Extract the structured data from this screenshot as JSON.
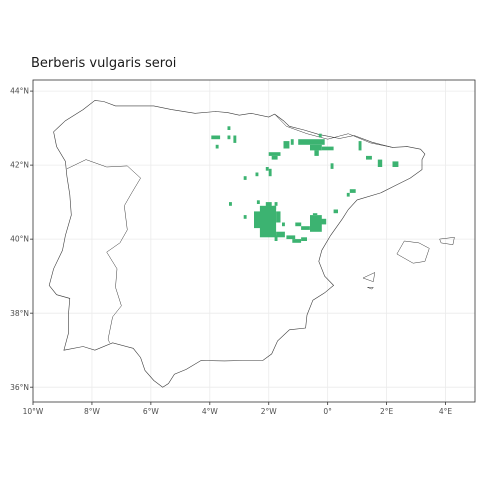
{
  "title": "Berberis vulgaris seroi",
  "colors": {
    "background": "#ffffff",
    "grid": "#ebebeb",
    "panel_border": "#333333",
    "coastline": "#3a3a3a",
    "occurrence": "#3cb371"
  },
  "chart_data": {
    "type": "scatter",
    "title": "Berberis vulgaris seroi",
    "xlabel": "",
    "ylabel": "",
    "xlim": [
      -10.0,
      5.0
    ],
    "ylim": [
      35.6,
      44.3
    ],
    "x_ticks": [
      {
        "value": -10,
        "label": "10°W"
      },
      {
        "value": -8,
        "label": "8°W"
      },
      {
        "value": -6,
        "label": "6°W"
      },
      {
        "value": -4,
        "label": "4°W"
      },
      {
        "value": -2,
        "label": "2°W"
      },
      {
        "value": 0,
        "label": "0°"
      },
      {
        "value": 2,
        "label": "2°E"
      },
      {
        "value": 4,
        "label": "4°E"
      }
    ],
    "y_ticks": [
      {
        "value": 36,
        "label": "36°N"
      },
      {
        "value": 38,
        "label": "38°N"
      },
      {
        "value": 40,
        "label": "40°N"
      },
      {
        "value": 42,
        "label": "42°N"
      },
      {
        "value": 44,
        "label": "44°N"
      }
    ],
    "grid": true,
    "cell_size_deg": 0.1,
    "occurrence_blocks": [
      {
        "lon": [
          -3.95,
          -3.65
        ],
        "lat": [
          42.7,
          42.8
        ]
      },
      {
        "lon": [
          -3.8,
          -3.7
        ],
        "lat": [
          42.45,
          42.55
        ]
      },
      {
        "lon": [
          -3.4,
          -3.3
        ],
        "lat": [
          42.95,
          43.05
        ]
      },
      {
        "lon": [
          -3.4,
          -3.3
        ],
        "lat": [
          42.7,
          42.8
        ]
      },
      {
        "lon": [
          -3.2,
          -3.1
        ],
        "lat": [
          42.6,
          42.8
        ]
      },
      {
        "lon": [
          -2.45,
          -2.35
        ],
        "lat": [
          41.7,
          41.8
        ]
      },
      {
        "lon": [
          -2.85,
          -2.75
        ],
        "lat": [
          41.6,
          41.7
        ]
      },
      {
        "lon": [
          -2.1,
          -2.0
        ],
        "lat": [
          41.85,
          41.95
        ]
      },
      {
        "lon": [
          -2.0,
          -1.9
        ],
        "lat": [
          41.7,
          41.9
        ]
      },
      {
        "lon": [
          -2.0,
          -1.6
        ],
        "lat": [
          42.25,
          42.35
        ]
      },
      {
        "lon": [
          -1.9,
          -1.7
        ],
        "lat": [
          42.15,
          42.25
        ]
      },
      {
        "lon": [
          -1.5,
          -1.3
        ],
        "lat": [
          42.45,
          42.65
        ]
      },
      {
        "lon": [
          -1.25,
          -1.15
        ],
        "lat": [
          42.55,
          42.7
        ]
      },
      {
        "lon": [
          -1.0,
          -0.1
        ],
        "lat": [
          42.55,
          42.7
        ]
      },
      {
        "lon": [
          -0.6,
          -0.2
        ],
        "lat": [
          42.4,
          42.55
        ]
      },
      {
        "lon": [
          -0.45,
          -0.3
        ],
        "lat": [
          42.25,
          42.4
        ]
      },
      {
        "lon": [
          -0.3,
          -0.2
        ],
        "lat": [
          42.75,
          42.85
        ]
      },
      {
        "lon": [
          -0.2,
          0.2
        ],
        "lat": [
          42.4,
          42.5
        ]
      },
      {
        "lon": [
          0.1,
          0.2
        ],
        "lat": [
          41.9,
          42.05
        ]
      },
      {
        "lon": [
          1.05,
          1.15
        ],
        "lat": [
          42.4,
          42.65
        ]
      },
      {
        "lon": [
          1.3,
          1.5
        ],
        "lat": [
          42.15,
          42.25
        ]
      },
      {
        "lon": [
          1.7,
          1.85
        ],
        "lat": [
          41.95,
          42.15
        ]
      },
      {
        "lon": [
          2.2,
          2.4
        ],
        "lat": [
          41.95,
          42.1
        ]
      },
      {
        "lon": [
          0.65,
          0.75
        ],
        "lat": [
          41.15,
          41.25
        ]
      },
      {
        "lon": [
          0.75,
          0.95
        ],
        "lat": [
          41.25,
          41.35
        ]
      },
      {
        "lon": [
          0.2,
          0.35
        ],
        "lat": [
          40.7,
          40.8
        ]
      },
      {
        "lon": [
          -3.35,
          -3.25
        ],
        "lat": [
          40.9,
          41.0
        ]
      },
      {
        "lon": [
          -2.4,
          -2.3
        ],
        "lat": [
          40.95,
          41.05
        ]
      },
      {
        "lon": [
          -2.85,
          -2.75
        ],
        "lat": [
          40.55,
          40.65
        ]
      },
      {
        "lon": [
          -2.5,
          -2.1
        ],
        "lat": [
          40.3,
          40.75
        ]
      },
      {
        "lon": [
          -2.3,
          -1.75
        ],
        "lat": [
          40.05,
          40.9
        ]
      },
      {
        "lon": [
          -2.1,
          -1.9
        ],
        "lat": [
          40.85,
          41.0
        ]
      },
      {
        "lon": [
          -1.75,
          -1.6
        ],
        "lat": [
          40.45,
          40.75
        ]
      },
      {
        "lon": [
          -1.75,
          -1.45
        ],
        "lat": [
          40.05,
          40.2
        ]
      },
      {
        "lon": [
          -1.55,
          -1.45
        ],
        "lat": [
          40.35,
          40.45
        ]
      },
      {
        "lon": [
          -1.8,
          -1.7
        ],
        "lat": [
          39.95,
          40.1
        ]
      },
      {
        "lon": [
          -1.4,
          -1.1
        ],
        "lat": [
          40.0,
          40.1
        ]
      },
      {
        "lon": [
          -1.2,
          -0.9
        ],
        "lat": [
          39.9,
          40.0
        ]
      },
      {
        "lon": [
          -0.9,
          -0.7
        ],
        "lat": [
          39.95,
          40.05
        ]
      },
      {
        "lon": [
          -1.1,
          -0.9
        ],
        "lat": [
          40.35,
          40.45
        ]
      },
      {
        "lon": [
          -0.9,
          -0.6
        ],
        "lat": [
          40.25,
          40.35
        ]
      },
      {
        "lon": [
          -0.6,
          -0.2
        ],
        "lat": [
          40.2,
          40.65
        ]
      },
      {
        "lon": [
          -0.25,
          -0.05
        ],
        "lat": [
          40.4,
          40.55
        ]
      },
      {
        "lon": [
          -0.5,
          -0.35
        ],
        "lat": [
          40.65,
          40.7
        ]
      },
      {
        "lon": [
          -1.8,
          -1.7
        ],
        "lat": [
          40.9,
          41.0
        ]
      },
      {
        "lon": [
          -1.85,
          -1.75
        ],
        "lat": [
          40.8,
          40.9
        ]
      }
    ]
  },
  "geography": {
    "iberia": [
      [
        -8.9,
        43.2
      ],
      [
        -8.3,
        43.5
      ],
      [
        -7.9,
        43.75
      ],
      [
        -7.6,
        43.72
      ],
      [
        -7.2,
        43.6
      ],
      [
        -5.9,
        43.6
      ],
      [
        -5.3,
        43.5
      ],
      [
        -4.5,
        43.4
      ],
      [
        -3.8,
        43.45
      ],
      [
        -3.4,
        43.42
      ],
      [
        -3.0,
        43.35
      ],
      [
        -2.6,
        43.4
      ],
      [
        -2.0,
        43.3
      ],
      [
        -1.8,
        43.38
      ],
      [
        -1.5,
        43.2
      ],
      [
        -1.3,
        43.05
      ],
      [
        -0.8,
        42.95
      ],
      [
        -0.3,
        42.83
      ],
      [
        0.4,
        42.72
      ],
      [
        0.9,
        42.8
      ],
      [
        1.5,
        42.62
      ],
      [
        2.2,
        42.48
      ],
      [
        2.7,
        42.5
      ],
      [
        3.15,
        42.43
      ],
      [
        3.3,
        42.3
      ],
      [
        3.2,
        42.15
      ],
      [
        3.2,
        41.88
      ],
      [
        2.8,
        41.65
      ],
      [
        2.3,
        41.45
      ],
      [
        1.8,
        41.25
      ],
      [
        1.0,
        41.06
      ],
      [
        0.7,
        40.8
      ],
      [
        0.5,
        40.55
      ],
      [
        0.1,
        40.1
      ],
      [
        -0.2,
        39.7
      ],
      [
        -0.3,
        39.4
      ],
      [
        -0.1,
        39.0
      ],
      [
        0.2,
        38.75
      ],
      [
        -0.1,
        38.55
      ],
      [
        -0.5,
        38.35
      ],
      [
        -0.7,
        37.95
      ],
      [
        -0.75,
        37.6
      ],
      [
        -1.3,
        37.55
      ],
      [
        -1.7,
        37.25
      ],
      [
        -1.9,
        36.9
      ],
      [
        -2.2,
        36.72
      ],
      [
        -2.9,
        36.72
      ],
      [
        -3.5,
        36.71
      ],
      [
        -4.3,
        36.72
      ],
      [
        -4.8,
        36.48
      ],
      [
        -5.2,
        36.35
      ],
      [
        -5.4,
        36.1
      ],
      [
        -5.6,
        36.0
      ],
      [
        -5.9,
        36.18
      ],
      [
        -6.2,
        36.45
      ],
      [
        -6.35,
        36.8
      ],
      [
        -6.6,
        37.05
      ],
      [
        -7.3,
        37.2
      ],
      [
        -7.9,
        37.0
      ],
      [
        -8.3,
        37.1
      ],
      [
        -8.95,
        37.0
      ],
      [
        -8.8,
        37.45
      ],
      [
        -8.8,
        37.95
      ],
      [
        -8.75,
        38.4
      ],
      [
        -9.2,
        38.5
      ],
      [
        -9.45,
        38.75
      ],
      [
        -9.3,
        39.2
      ],
      [
        -9.0,
        39.7
      ],
      [
        -8.9,
        40.1
      ],
      [
        -8.7,
        40.65
      ],
      [
        -8.75,
        41.2
      ],
      [
        -8.85,
        41.7
      ],
      [
        -8.9,
        42.1
      ],
      [
        -9.2,
        42.5
      ],
      [
        -9.3,
        42.9
      ],
      [
        -8.9,
        43.2
      ]
    ],
    "borders": [
      [
        [
          -8.85,
          41.9
        ],
        [
          -8.2,
          42.15
        ],
        [
          -7.5,
          41.95
        ],
        [
          -6.8,
          41.98
        ],
        [
          -6.35,
          41.65
        ],
        [
          -6.65,
          41.25
        ],
        [
          -6.9,
          40.9
        ],
        [
          -6.8,
          40.25
        ],
        [
          -7.05,
          39.9
        ],
        [
          -7.5,
          39.65
        ],
        [
          -7.15,
          39.2
        ],
        [
          -7.2,
          38.7
        ],
        [
          -7.0,
          38.2
        ],
        [
          -7.3,
          37.9
        ],
        [
          -7.45,
          37.3
        ],
        [
          -7.4,
          37.2
        ]
      ],
      [
        [
          -1.8,
          43.38
        ],
        [
          -1.4,
          43.05
        ],
        [
          -0.7,
          42.85
        ],
        [
          0.0,
          42.7
        ],
        [
          0.7,
          42.85
        ],
        [
          1.45,
          42.6
        ],
        [
          2.2,
          42.48
        ]
      ]
    ],
    "islands": [
      [
        [
          2.35,
          39.6
        ],
        [
          2.6,
          39.95
        ],
        [
          3.1,
          39.9
        ],
        [
          3.45,
          39.75
        ],
        [
          3.3,
          39.4
        ],
        [
          2.9,
          39.35
        ],
        [
          2.35,
          39.6
        ]
      ],
      [
        [
          3.8,
          40.0
        ],
        [
          4.3,
          40.05
        ],
        [
          4.25,
          39.85
        ],
        [
          3.85,
          39.9
        ],
        [
          3.8,
          40.0
        ]
      ],
      [
        [
          1.2,
          38.95
        ],
        [
          1.6,
          39.1
        ],
        [
          1.55,
          38.85
        ],
        [
          1.2,
          38.95
        ]
      ],
      [
        [
          1.35,
          38.7
        ],
        [
          1.55,
          38.7
        ],
        [
          1.5,
          38.65
        ],
        [
          1.35,
          38.7
        ]
      ]
    ]
  }
}
